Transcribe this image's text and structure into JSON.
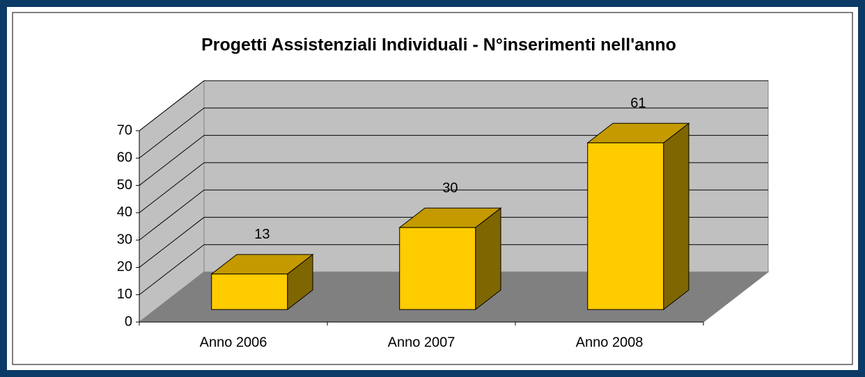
{
  "chart_data": {
    "type": "bar3d",
    "title": "Progetti Assistenziali Individuali - N°inserimenti nell'anno",
    "categories": [
      "Anno 2006",
      "Anno 2007",
      "Anno 2008"
    ],
    "values": [
      13,
      30,
      61
    ],
    "color": "#ffcc00",
    "ylim": [
      0,
      70
    ],
    "yticks": [
      0,
      10,
      20,
      30,
      40,
      50,
      60,
      70
    ],
    "grid": true
  }
}
